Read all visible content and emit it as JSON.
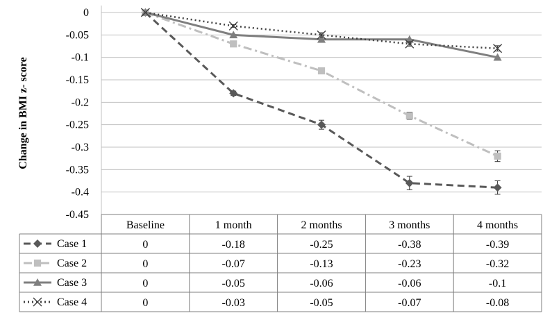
{
  "colors": {
    "case1": "#595959",
    "case2": "#bfbfbf",
    "case3": "#7f7f7f",
    "case4": "#404040",
    "grid": "#c0c0c0",
    "table_border": "#7f7f7f"
  },
  "chart_data": {
    "type": "line",
    "title": "",
    "xlabel": "",
    "ylabel": "Change in BMI z- score",
    "ylim": [
      -0.45,
      0
    ],
    "y_ticks": [
      "0",
      "-0.05",
      "-0.1",
      "-0.15",
      "-0.2",
      "-0.25",
      "-0.3",
      "-0.35",
      "-0.4",
      "-0.45"
    ],
    "y_tick_values": [
      0,
      -0.05,
      -0.1,
      -0.15,
      -0.2,
      -0.25,
      -0.3,
      -0.35,
      -0.4,
      -0.45
    ],
    "grid": true,
    "categories": [
      "Baseline",
      "1 month",
      "2 months",
      "3 months",
      "4 months"
    ],
    "legend_position": "data-table-left",
    "series": [
      {
        "name": "Case 1",
        "line_style": "dashed",
        "marker": "diamond",
        "color_key": "case1",
        "values": [
          0,
          -0.18,
          -0.25,
          -0.38,
          -0.39
        ],
        "value_labels": [
          "0",
          "-0.18",
          "-0.25",
          "-0.38",
          "-0.39"
        ],
        "error": [
          0,
          0.005,
          0.01,
          0.015,
          0.015
        ]
      },
      {
        "name": "Case 2",
        "line_style": "dash-dot",
        "marker": "square",
        "color_key": "case2",
        "values": [
          0,
          -0.07,
          -0.13,
          -0.23,
          -0.32
        ],
        "value_labels": [
          "0",
          "-0.07",
          "-0.13",
          "-0.23",
          "-0.32"
        ],
        "error": [
          0,
          0.005,
          0.005,
          0.008,
          0.012
        ]
      },
      {
        "name": "Case 3",
        "line_style": "solid",
        "marker": "triangle",
        "color_key": "case3",
        "values": [
          0,
          -0.05,
          -0.06,
          -0.06,
          -0.1
        ],
        "value_labels": [
          "0",
          "-0.05",
          "-0.06",
          "-0.06",
          "-0.1"
        ],
        "error": [
          0,
          0,
          0,
          0,
          0
        ]
      },
      {
        "name": "Case 4",
        "line_style": "dotted",
        "marker": "x",
        "color_key": "case4",
        "values": [
          0,
          -0.03,
          -0.05,
          -0.07,
          -0.08
        ],
        "value_labels": [
          "0",
          "-0.03",
          "-0.05",
          "-0.07",
          "-0.08"
        ],
        "error": [
          0,
          0.003,
          0.005,
          0.005,
          0.006
        ]
      }
    ]
  }
}
